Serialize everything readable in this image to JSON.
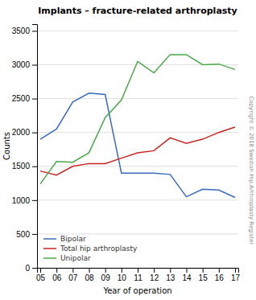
{
  "chart_data": {
    "type": "line",
    "title": "Implants – fracture-related arthroplasty",
    "xlabel": "Year of operation",
    "ylabel": "Counts",
    "categories": [
      "05",
      "06",
      "07",
      "08",
      "09",
      "10",
      "11",
      "12",
      "13",
      "14",
      "15",
      "16",
      "17"
    ],
    "series": [
      {
        "name": "Bipolar",
        "color": "#3a6bbf",
        "values": [
          1900,
          2050,
          2450,
          2580,
          2560,
          1400,
          1400,
          1400,
          1380,
          1050,
          1160,
          1150,
          1040
        ]
      },
      {
        "name": "Total hip arthroplasty",
        "color": "#cc2222",
        "values": [
          1430,
          1370,
          1500,
          1540,
          1540,
          1620,
          1700,
          1730,
          1920,
          1840,
          1900,
          2000,
          2080
        ]
      },
      {
        "name": "Unipolar",
        "color": "#4aa84a",
        "values": [
          1240,
          1570,
          1560,
          1700,
          2220,
          2480,
          3050,
          2880,
          3150,
          3150,
          3000,
          3010,
          2930
        ]
      }
    ],
    "ylim": [
      0,
      3600
    ],
    "yticks": [
      0,
      500,
      1000,
      1500,
      2000,
      2500,
      3000,
      3500
    ],
    "grid": true,
    "legend": "lower left",
    "annotation": "Copyright © 2018 Swedish Hip Arthroplasty Register"
  }
}
